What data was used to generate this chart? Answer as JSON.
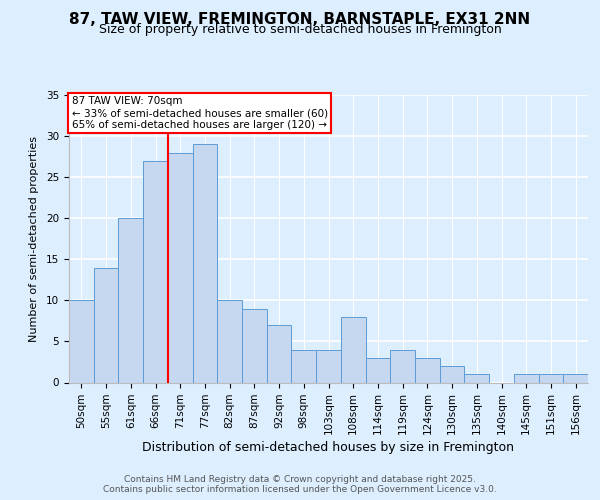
{
  "title1": "87, TAW VIEW, FREMINGTON, BARNSTAPLE, EX31 2NN",
  "title2": "Size of property relative to semi-detached houses in Fremington",
  "xlabel": "Distribution of semi-detached houses by size in Fremington",
  "ylabel": "Number of semi-detached properties",
  "categories": [
    "50sqm",
    "55sqm",
    "61sqm",
    "66sqm",
    "71sqm",
    "77sqm",
    "82sqm",
    "87sqm",
    "92sqm",
    "98sqm",
    "103sqm",
    "108sqm",
    "114sqm",
    "119sqm",
    "124sqm",
    "130sqm",
    "135sqm",
    "140sqm",
    "145sqm",
    "151sqm",
    "156sqm"
  ],
  "values": [
    10,
    14,
    20,
    27,
    28,
    29,
    10,
    9,
    7,
    4,
    4,
    8,
    3,
    4,
    3,
    2,
    1,
    0,
    1,
    1,
    1
  ],
  "bar_color": "#c5d8f0",
  "bar_edge_color": "#5b9bd5",
  "highlight_line_index": 4,
  "highlight_line_color": "red",
  "annotation_box_text": "87 TAW VIEW: 70sqm\n← 33% of semi-detached houses are smaller (60)\n65% of semi-detached houses are larger (120) →",
  "footer": "Contains HM Land Registry data © Crown copyright and database right 2025.\nContains public sector information licensed under the Open Government Licence v3.0.",
  "ylim": [
    0,
    35
  ],
  "yticks": [
    0,
    5,
    10,
    15,
    20,
    25,
    30,
    35
  ],
  "background_color": "#ddeeff",
  "plot_bg_color": "#ddeeff",
  "grid_color": "#ffffff",
  "title1_fontsize": 11,
  "title2_fontsize": 9,
  "xlabel_fontsize": 9,
  "ylabel_fontsize": 8,
  "tick_fontsize": 7.5,
  "footer_fontsize": 6.5,
  "annot_fontsize": 7.5
}
